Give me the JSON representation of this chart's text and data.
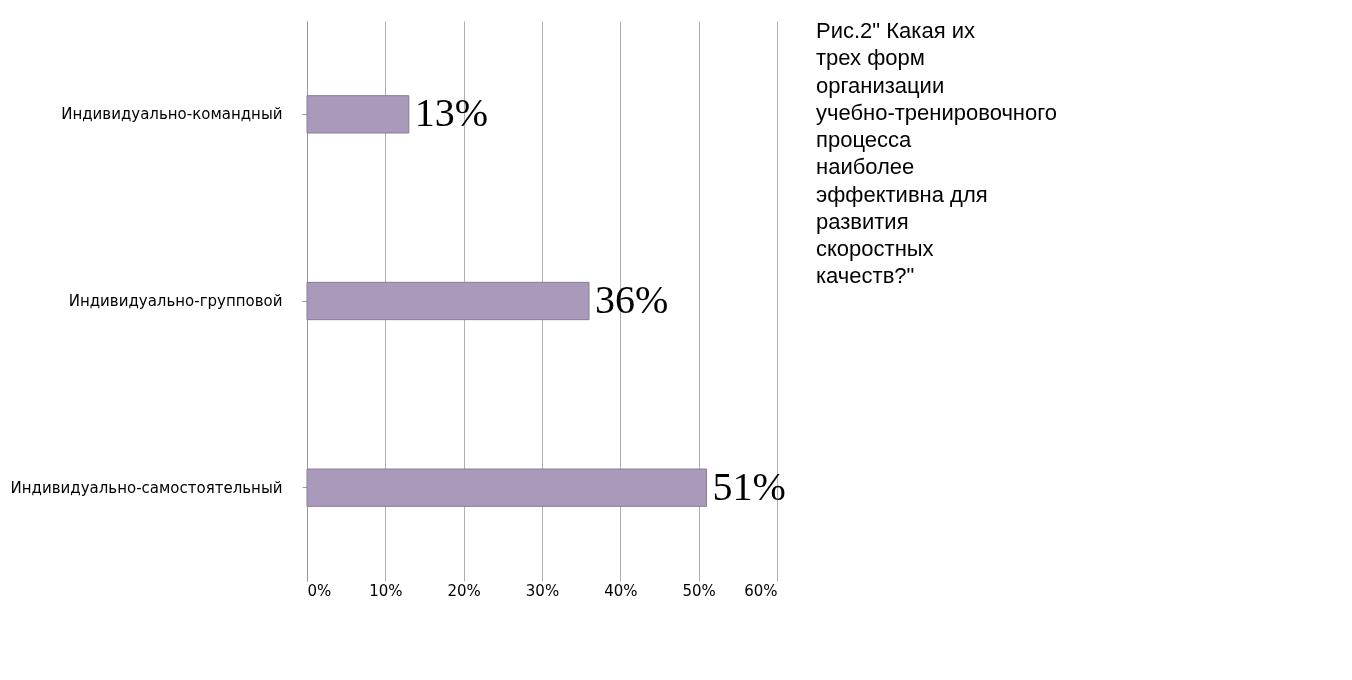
{
  "chart_data": {
    "type": "bar",
    "orientation": "horizontal",
    "title": "Рис.2\" Какая их трех форм организации учебно-тренировочного процесса наиболее эффективна для развития скоростных качеств?\"",
    "categories": [
      "Индивидуально-командный",
      "Индивидуально-групповой",
      "Индивидуально-самостоятельный"
    ],
    "values": [
      13,
      36,
      51
    ],
    "value_labels": [
      "13%",
      "36%",
      "51%"
    ],
    "color": "#a89ab8",
    "xlim": [
      0,
      60
    ],
    "xticks": [
      {
        "value": 0,
        "label": "0%"
      },
      {
        "value": 10,
        "label": "10%"
      },
      {
        "value": 20,
        "label": "20%"
      },
      {
        "value": 30,
        "label": "30%"
      },
      {
        "value": 40,
        "label": "40%"
      },
      {
        "value": 50,
        "label": "50%"
      },
      {
        "value": 60,
        "label": "60%"
      }
    ],
    "grid": "x"
  }
}
